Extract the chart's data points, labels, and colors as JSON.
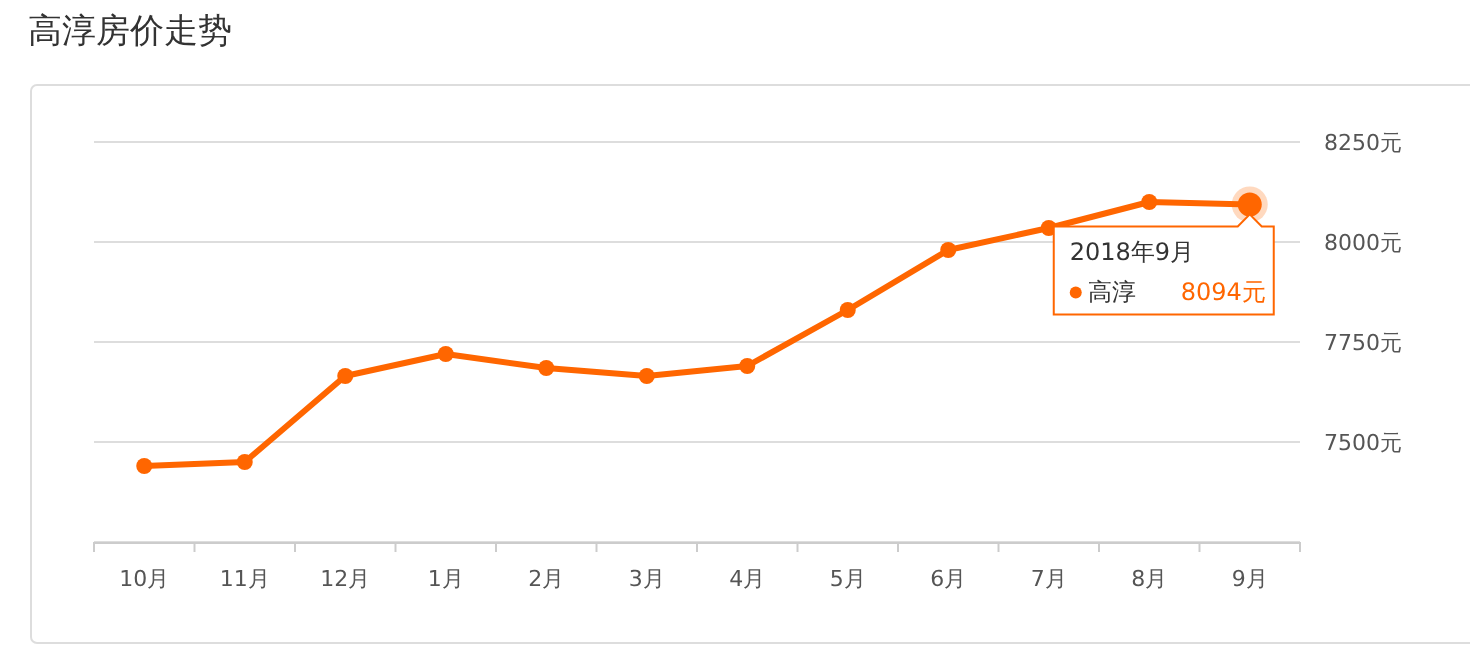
{
  "chart_data": {
    "type": "line",
    "title": "高淳房价走势",
    "categories": [
      "10月",
      "11月",
      "12月",
      "1月",
      "2月",
      "3月",
      "4月",
      "5月",
      "6月",
      "7月",
      "8月",
      "9月"
    ],
    "series": [
      {
        "name": "高淳",
        "color": "#ff6600",
        "values": [
          7440,
          7450,
          7665,
          7720,
          7685,
          7665,
          7690,
          7830,
          7980,
          8035,
          8100,
          8094
        ],
        "value_labels": [
          null,
          null,
          null,
          null,
          null,
          null,
          null,
          null,
          null,
          null,
          null,
          "8094元"
        ]
      }
    ],
    "ylim": [
      7250,
      8250
    ],
    "yticks": [
      {
        "value": 7250,
        "label": null
      },
      {
        "value": 7500,
        "label": "7500元"
      },
      {
        "value": 7750,
        "label": "7750元"
      },
      {
        "value": 8000,
        "label": "8000元"
      },
      {
        "value": 8250,
        "label": "8250元"
      }
    ],
    "grid": "y",
    "marker": "circle",
    "annotations": [
      {
        "text": "2018年9月",
        "x": "9月",
        "y": 8094
      }
    ]
  }
}
